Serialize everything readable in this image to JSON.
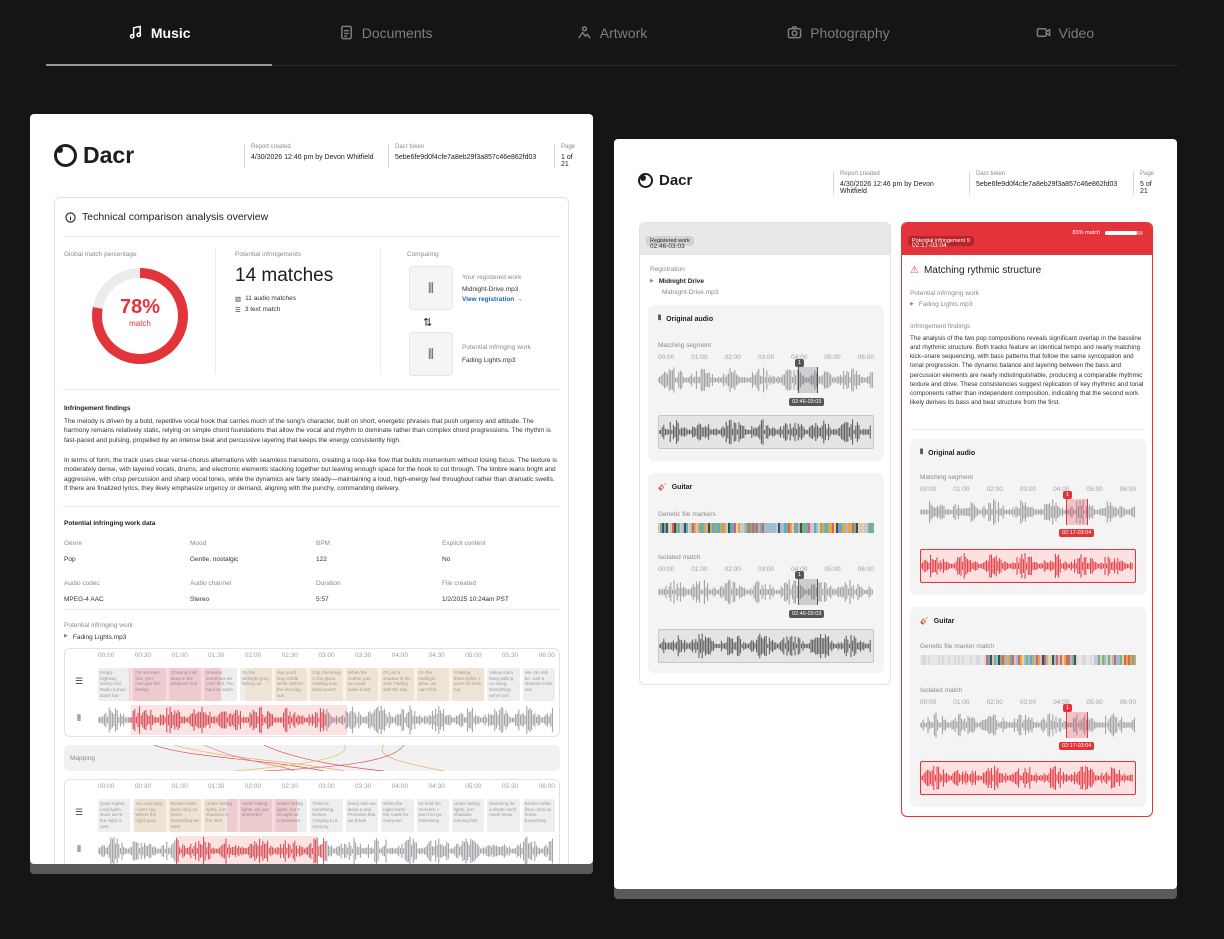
{
  "tabs": [
    {
      "label": "Music",
      "icon": "music-note-icon",
      "active": true
    },
    {
      "label": "Documents",
      "icon": "document-icon",
      "active": false
    },
    {
      "label": "Artwork",
      "icon": "artwork-icon",
      "active": false
    },
    {
      "label": "Photography",
      "icon": "camera-icon",
      "active": false
    },
    {
      "label": "Video",
      "icon": "video-icon",
      "active": false
    }
  ],
  "left": {
    "logo": "Dacr",
    "report_created_label": "Report created",
    "report_created": "4/30/2026 12:46 pm by Devon Whitfield",
    "token_label": "Dacr token",
    "token": "5ebe6fe9d0f4cfe7a8eb29f3a857c46e862fd03",
    "page_label": "Page",
    "page": "1 of 21",
    "overview_title": "Technical comparison analysis overview",
    "global_label": "Global match percentage",
    "percent": "78%",
    "percent_value": 78,
    "match": "match",
    "potential_label": "Potential infringements",
    "matches": "14 matches",
    "audio_matches": "11 audio matches",
    "text_matches": "3 text match",
    "comparing_label": "Comparing",
    "registered_label": "Your registered work",
    "registered_file": "Midnight-Drive.mp3",
    "view_registration": "View registration",
    "infringing_label": "Potential infringing work",
    "infringing_file": "Fading Lights.mp3",
    "findings_title": "Infringement findings",
    "findings_p1": "The melody is driven by a bold, repetitive vocal hook that carries much of the song's character, built on short, energetic phrases that push urgency and attitude. The harmony remains relatively static, relying on simple chord foundations that allow the vocal and rhythm to dominate rather than complex chord progressions. The rhythm is fast-paced and pulsing, propelled by an intense beat and percussive layering that keeps the energy consistently high.",
    "findings_p2": "In terms of form, the track uses clear verse-chorus alternations with seamless transitions, creating a loop-like flow that builds momentum without losing focus. The texture is moderately dense, with layered vocals, drums, and electronic elements stacking together but leaving enough space for the hook to cut through. The timbre leans bright and aggressive, with crisp percussion and sharp vocal tones, while the dynamics are fairly steady—maintaining a loud, high-energy feel throughout rather than dramatic swells. If there are finalized lyrics, they likely emphasize urgency or demand, aligning with the punchy, commanding delivery.",
    "work_data_title": "Potential infringing work data",
    "meta": [
      {
        "k": "Genre",
        "v": "Pop"
      },
      {
        "k": "Mood",
        "v": "Gentle, nostalgic"
      },
      {
        "k": "BPM",
        "v": "122"
      },
      {
        "k": "Explicit content",
        "v": "No"
      },
      {
        "k": "Audio codec",
        "v": "MPEG-4 AAC"
      },
      {
        "k": "Audio channel",
        "v": "Stereo"
      },
      {
        "k": "Duration",
        "v": "5:57"
      },
      {
        "k": "File created",
        "v": "1/2/2025 10:24am PST"
      }
    ],
    "tl_label": "Potential infringing work",
    "tl_file": "Fading Lights.mp3",
    "ticks": [
      "00:00",
      "00:30",
      "01:00",
      "01:30",
      "02:00",
      "02:30",
      "03:00",
      "03:30",
      "04:00",
      "04:30",
      "05:00",
      "05:30",
      "06:00"
    ],
    "lyrics1": [
      "Empty highway, lonely roof, Radio turned down low",
      "I'm not even fine, yet i can't get this feeling",
      "Chasing it all deep in the whatever line",
      "Dreams, somehow we can't find. Too hard to reach",
      "On the midnight grey, fading out",
      "Say you'll stay a little while. Before the morning sun",
      "City shimming in the glass. Holding onto what wasn't",
      "When the mother part, we could make it last",
      "Or just a shadow in the seat. Fading with the day",
      "On the midnight drive, we can't find",
      "Chasing these lights, I won't let them run",
      "Yellow stars keep pulling us along. Everything we've lost",
      "We can still be. Just a shadow in the sea"
    ],
    "mapping": "Mapping",
    "lyrics2": [
      "Quiet nights, road lights, stuck we're the night is over",
      "You said stay, I can't say. Where the night goes",
      "Broken white lines carry us home. Everything we were",
      "Under fading lights, just shadows in the time",
      "Under fading lights, we just remember",
      "Under fading lights, but it brought us somewhere",
      "There is something broken. Clinging to a memory",
      "Every mile we leave a trail. Promises that we break",
      "When the night burns the roads for everyone",
      "Or hold the moment, I won't let go. Dissolving",
      "Under fading lights, just shadows running fast",
      "Reaching for a dream we'll never know",
      "Broken white lines carry us home. Everything"
    ]
  },
  "right": {
    "logo": "Dacr",
    "report_created_label": "Report created",
    "report_created": "4/30/2026 12:46 pm by Devon Whitfield",
    "token_label": "Dacr token",
    "token": "5ebe6fe9d0f4cfe7a8eb29f3a857c46e862fd03",
    "page_label": "Page",
    "page": "5 of 21",
    "registered_chip": "Registered work",
    "registered_time": "02:46-03:03",
    "registration_label": "Registration",
    "reg_title": "Midnight Drive",
    "reg_file": "Midnight-Drive.mp3",
    "original_audio": "Original audio",
    "matching_segment": "Matching segment",
    "ticks": [
      "00:00",
      "01:00",
      "02:00",
      "03:00",
      "04:00",
      "05:00",
      "06:00"
    ],
    "seg_chip": "02:46-03:03",
    "marker": "1",
    "guitar": "Guitar",
    "genetic_markers": "Genetic file markers",
    "isolated_match": "Isolated match",
    "inf_chip": "Potential infringement 9",
    "inf_match": "83% match",
    "inf_match_value": 83,
    "inf_time": "02:17-03:04",
    "inf_title": "Matching rythmic structure",
    "inf_work_label": "Potential infringing work",
    "inf_file": "Fading Lights.mp3",
    "findings_label": "Infringement findings",
    "findings": "The analysis of the two pop compositions reveals significant overlap in the bassline and rhythmic structure. Both tracks feature an identical tempo and nearly matching kick–snare sequencing, with bass patterns that follow the same syncopation and tonal progression. The dynamic balance and layering between the bass and percussion elements are nearly indistinguishable, producing a comparable rhythmic texture and drive. These consistencies suggest replication of key rhythmic and tonal components rather than independent composition, indicating that the second work likely derives its bass and beat structure from the first.",
    "inf_seg_chip": "02:17-03:04",
    "genetic_marker_match": "Genetic file marker match"
  },
  "colors": {
    "accent": "#e3343c",
    "dark": "#1d1d1f",
    "bg": "#151516"
  }
}
